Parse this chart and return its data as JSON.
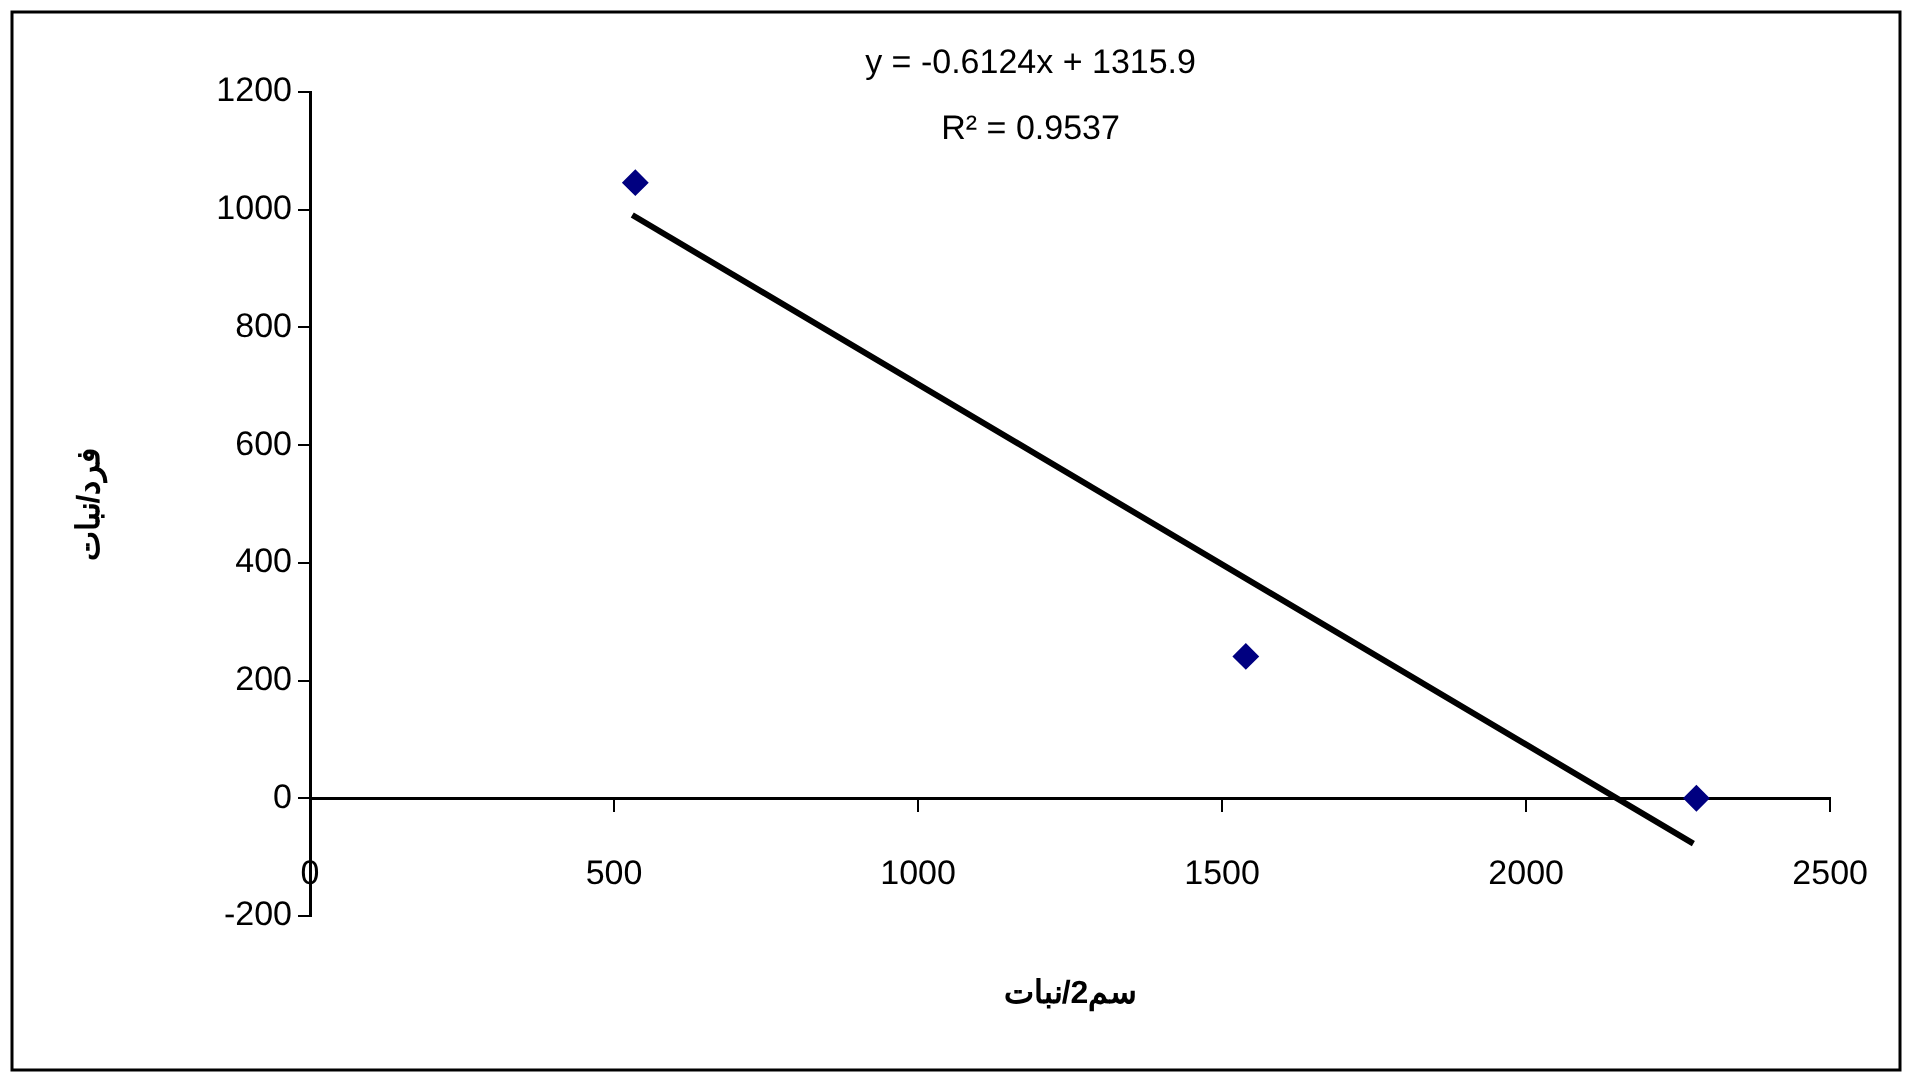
{
  "chart_data": {
    "type": "scatter",
    "xlabel": "سم2/نبات",
    "ylabel": "فرد/نبات",
    "annotations": [
      "y = -0.6124x + 1315.9",
      "R² = 0.9537"
    ],
    "xlim": [
      0,
      2500
    ],
    "xticks": [
      0,
      500,
      1000,
      1500,
      2000,
      2500
    ],
    "ylim": [
      -200,
      1200
    ],
    "yticks": [
      -200,
      0,
      200,
      400,
      600,
      800,
      1000,
      1200
    ],
    "grid": false,
    "legend": false,
    "marker": "diamond",
    "series": [
      {
        "color": "#000080",
        "x": [
          535,
          1539,
          2280
        ],
        "values": [
          1046,
          241,
          0
        ]
      },
      {
        "type": "line",
        "color": "#000000",
        "x": [
          530,
          2275
        ],
        "values": [
          991,
          -77
        ],
        "marker": "none"
      }
    ]
  }
}
